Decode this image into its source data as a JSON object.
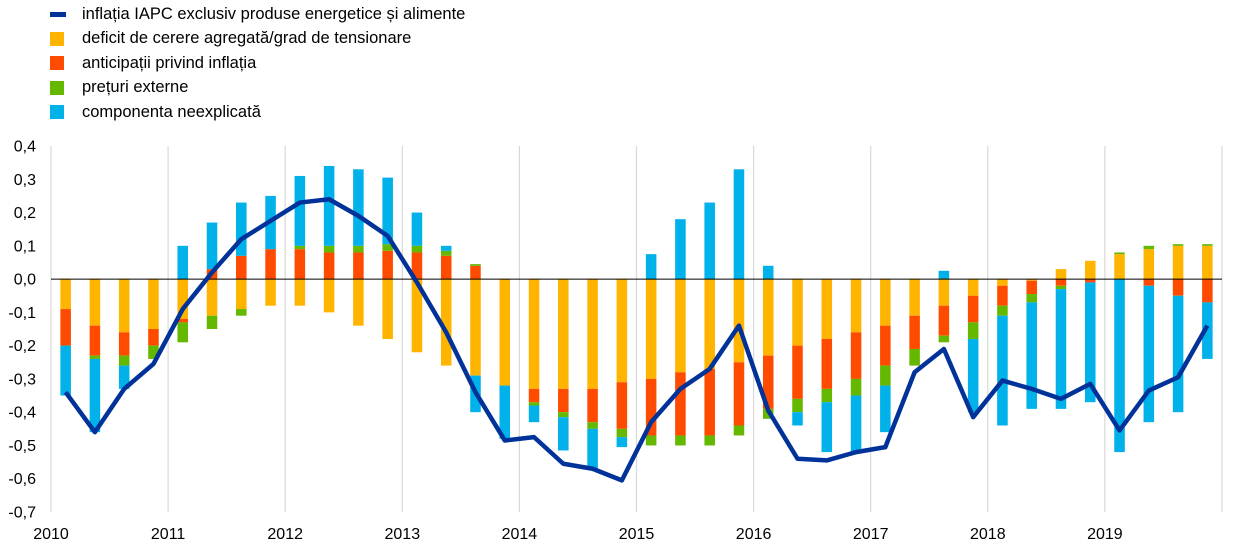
{
  "chart_data": {
    "type": "bar",
    "stacked": true,
    "title": "",
    "xlabel": "",
    "ylabel": "",
    "ylim": [
      -0.7,
      0.4
    ],
    "yticks": [
      "-0,7",
      "-0,6",
      "-0,5",
      "-0,4",
      "-0,3",
      "-0,2",
      "-0,1",
      "0,0",
      "0,1",
      "0,2",
      "0,3",
      "0,4"
    ],
    "ytick_values": [
      -0.7,
      -0.6,
      -0.5,
      -0.4,
      -0.3,
      -0.2,
      -0.1,
      0.0,
      0.1,
      0.2,
      0.3,
      0.4
    ],
    "xticks": [
      "2010",
      "2011",
      "2012",
      "2013",
      "2014",
      "2015",
      "2016",
      "2017",
      "2018",
      "2019"
    ],
    "grid": "vertical",
    "legend_position": "top-left",
    "categories": [
      "2010Q1",
      "2010Q2",
      "2010Q3",
      "2010Q4",
      "2011Q1",
      "2011Q2",
      "2011Q3",
      "2011Q4",
      "2012Q1",
      "2012Q2",
      "2012Q3",
      "2012Q4",
      "2013Q1",
      "2013Q2",
      "2013Q3",
      "2013Q4",
      "2014Q1",
      "2014Q2",
      "2014Q3",
      "2014Q4",
      "2015Q1",
      "2015Q2",
      "2015Q3",
      "2015Q4",
      "2016Q1",
      "2016Q2",
      "2016Q3",
      "2016Q4",
      "2017Q1",
      "2017Q2",
      "2017Q3",
      "2017Q4",
      "2018Q1",
      "2018Q2",
      "2018Q3",
      "2018Q4",
      "2019Q1",
      "2019Q2",
      "2019Q3",
      "2019Q4"
    ],
    "series": [
      {
        "name": "deficit de cerere agregată/grad de tensionare",
        "color": "#FFB400",
        "values": [
          -0.09,
          -0.14,
          -0.16,
          -0.15,
          -0.12,
          -0.11,
          -0.09,
          -0.08,
          -0.08,
          -0.1,
          -0.14,
          -0.18,
          -0.22,
          -0.26,
          -0.29,
          -0.32,
          -0.33,
          -0.33,
          -0.33,
          -0.31,
          -0.3,
          -0.28,
          -0.27,
          -0.25,
          -0.23,
          -0.2,
          -0.18,
          -0.16,
          -0.14,
          -0.11,
          -0.08,
          -0.05,
          -0.02,
          -0.005,
          0.03,
          0.055,
          0.075,
          0.09,
          0.1,
          0.1
        ]
      },
      {
        "name": "anticipații privind inflația",
        "color": "#FF4B00",
        "values": [
          -0.11,
          -0.09,
          -0.07,
          -0.05,
          -0.01,
          0.03,
          0.07,
          0.09,
          0.09,
          0.08,
          0.08,
          0.085,
          0.08,
          0.07,
          0.04,
          0.0,
          -0.04,
          -0.07,
          -0.1,
          -0.14,
          -0.17,
          -0.19,
          -0.2,
          -0.19,
          -0.16,
          -0.16,
          -0.15,
          -0.14,
          -0.12,
          -0.1,
          -0.09,
          -0.08,
          -0.06,
          -0.04,
          -0.02,
          -0.01,
          0.0,
          -0.02,
          -0.05,
          -0.07
        ]
      },
      {
        "name": "prețuri externe",
        "color": "#65B800",
        "values": [
          0.0,
          -0.01,
          -0.03,
          -0.04,
          -0.06,
          -0.04,
          -0.02,
          0.0,
          0.01,
          0.02,
          0.02,
          0.02,
          0.02,
          0.015,
          0.005,
          0.0,
          -0.01,
          -0.015,
          -0.02,
          -0.025,
          -0.03,
          -0.03,
          -0.03,
          -0.03,
          -0.03,
          -0.04,
          -0.04,
          -0.05,
          -0.06,
          -0.05,
          -0.02,
          -0.05,
          -0.03,
          -0.025,
          -0.01,
          0.0,
          0.005,
          0.01,
          0.005,
          0.005
        ]
      },
      {
        "name": "componenta neexplicată",
        "color": "#00B1EA",
        "values": [
          -0.15,
          -0.22,
          -0.07,
          0.0,
          0.1,
          0.14,
          0.16,
          0.16,
          0.21,
          0.24,
          0.23,
          0.2,
          0.1,
          0.015,
          -0.11,
          -0.16,
          -0.05,
          -0.1,
          -0.12,
          -0.03,
          0.075,
          0.18,
          0.23,
          0.33,
          0.04,
          -0.04,
          -0.15,
          -0.17,
          -0.14,
          0.0,
          0.025,
          -0.22,
          -0.33,
          -0.32,
          -0.36,
          -0.36,
          -0.52,
          -0.41,
          -0.35,
          -0.17
        ]
      }
    ],
    "line": {
      "name": "inflația IAPC exclusiv produse energetice și alimente",
      "color": "#003299",
      "values": [
        -0.34,
        -0.46,
        -0.33,
        -0.255,
        -0.09,
        0.02,
        0.12,
        0.175,
        0.23,
        0.24,
        0.19,
        0.13,
        -0.01,
        -0.16,
        -0.34,
        -0.485,
        -0.475,
        -0.555,
        -0.57,
        -0.605,
        -0.43,
        -0.33,
        -0.27,
        -0.14,
        -0.395,
        -0.54,
        -0.545,
        -0.52,
        -0.505,
        -0.28,
        -0.21,
        -0.415,
        -0.305,
        -0.33,
        -0.36,
        -0.315,
        -0.455,
        -0.335,
        -0.295,
        -0.14
      ]
    }
  }
}
